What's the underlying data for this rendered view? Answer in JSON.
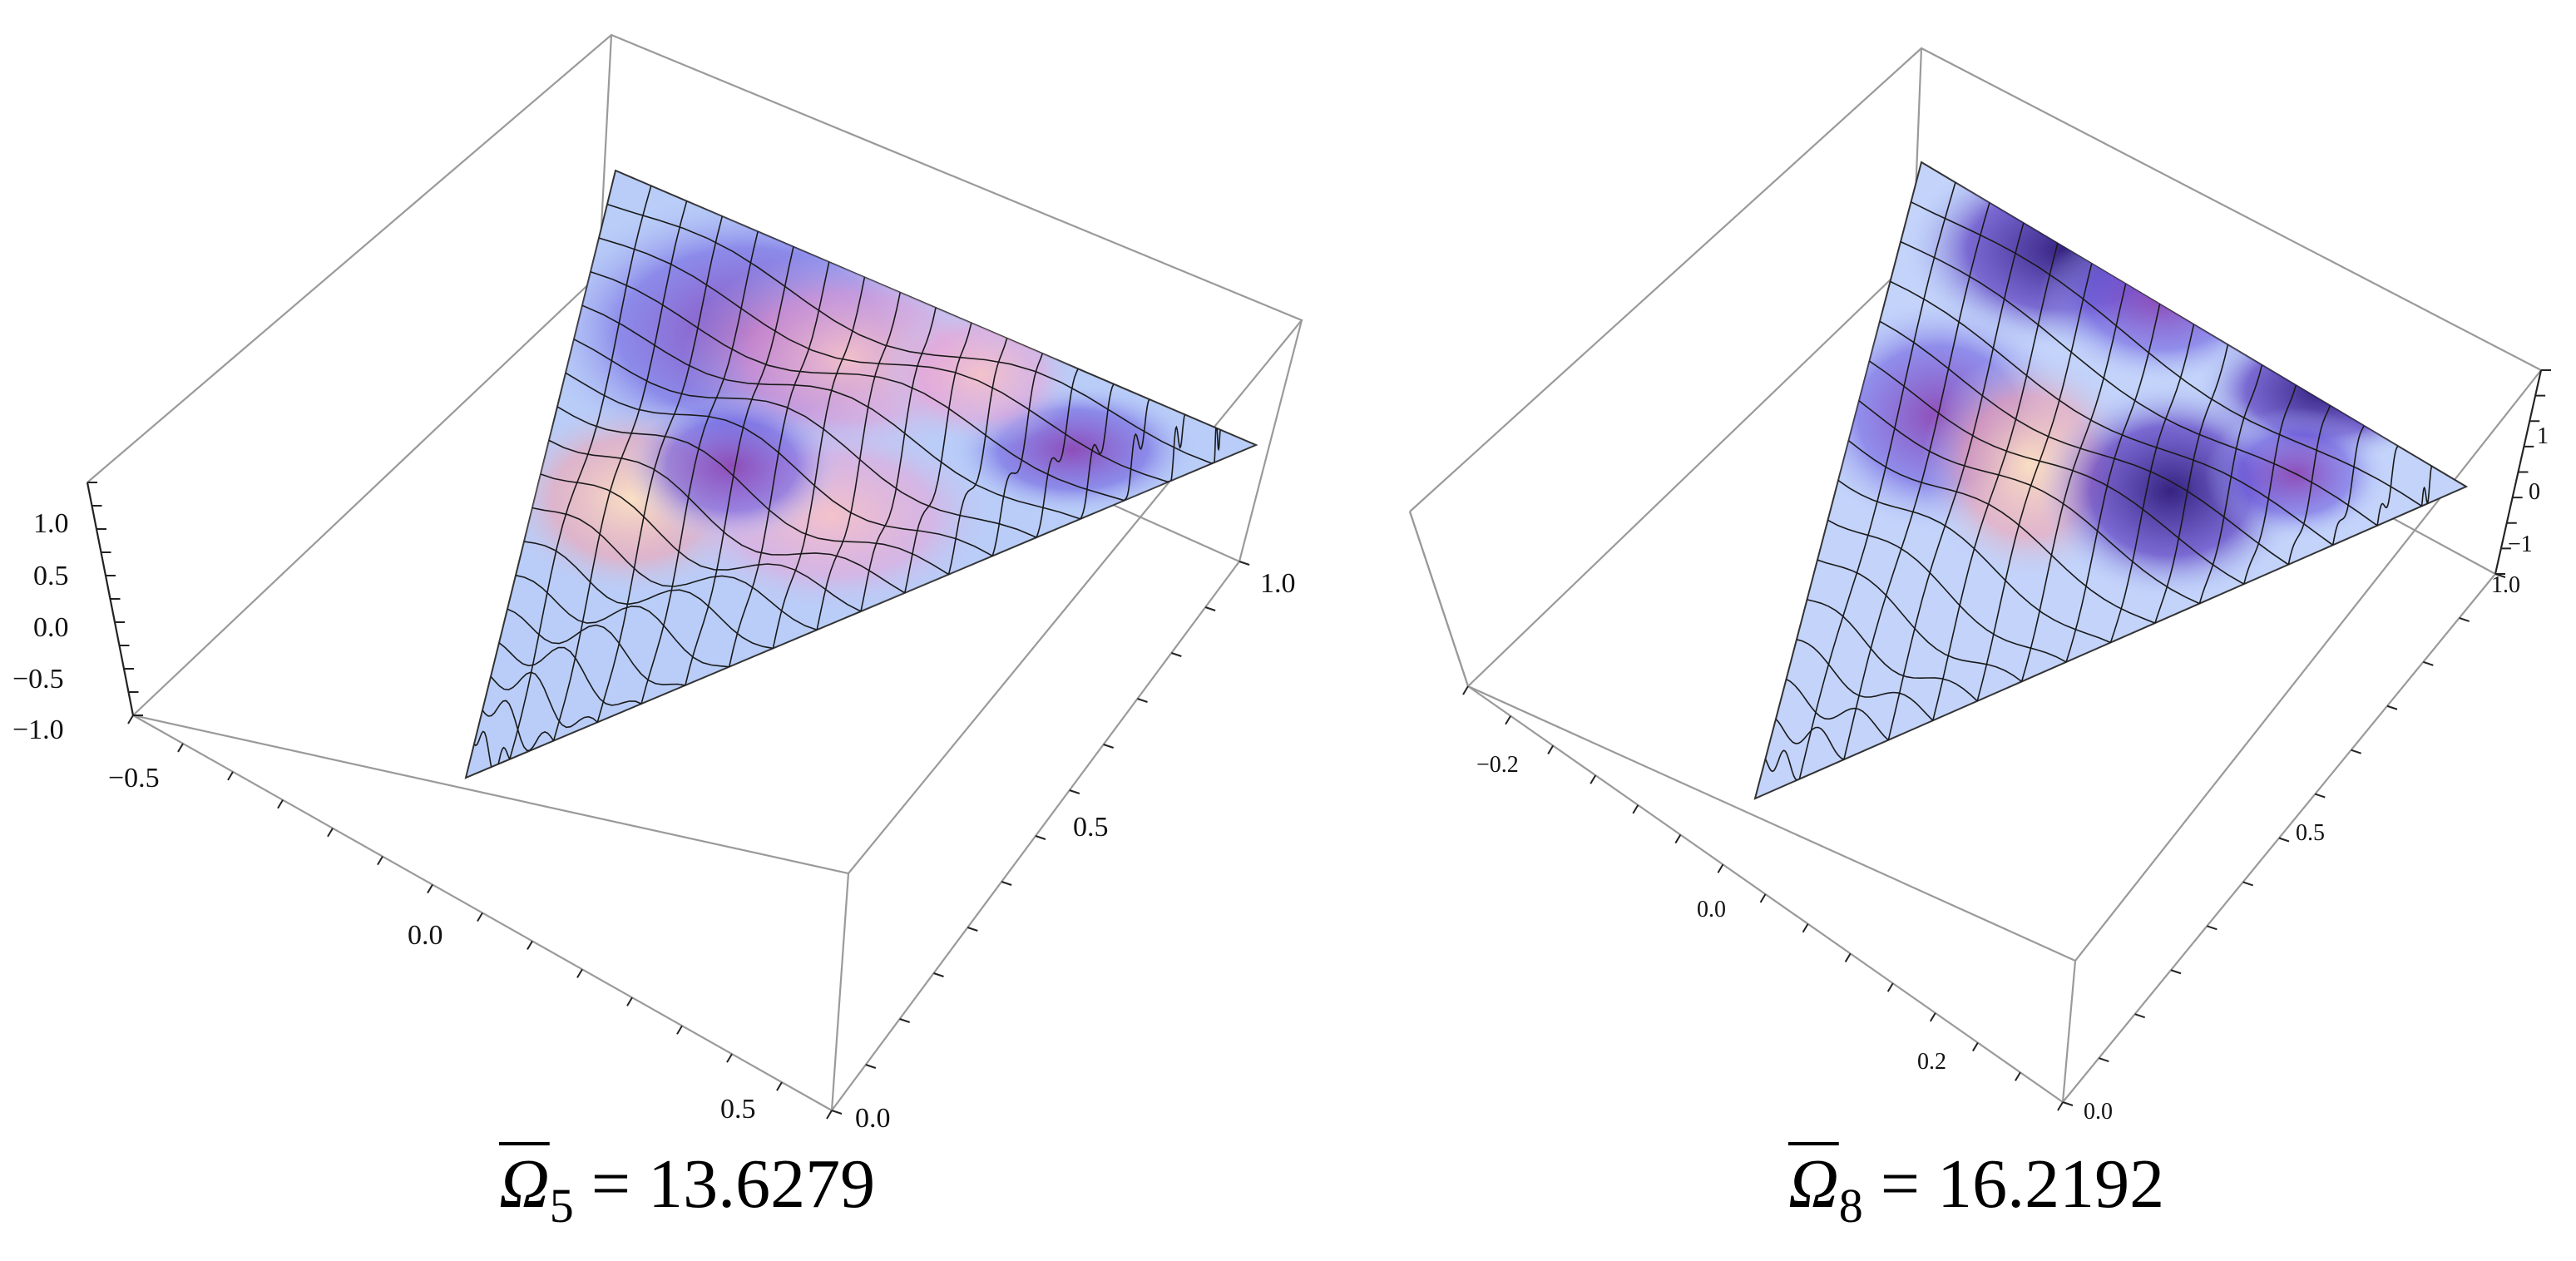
{
  "figure": {
    "panels": [
      {
        "id": "mode5",
        "caption": {
          "symbol": "Ω",
          "subscript": "5",
          "equals": "=",
          "value": "13.6279"
        },
        "z_ticks": [
          "1.0",
          "0.5",
          "0.0",
          "−0.5",
          "−1.0"
        ],
        "x_ticks": [
          "−0.5",
          "0.0",
          "0.5"
        ],
        "y_ticks": [
          "0.0",
          "0.5",
          "1.0"
        ]
      },
      {
        "id": "mode8",
        "caption": {
          "symbol": "Ω",
          "subscript": "8",
          "equals": "=",
          "value": "16.2192"
        },
        "z_ticks": [
          "1",
          "0",
          "−1"
        ],
        "x_ticks": [
          "−0.2",
          "0.0",
          "0.2"
        ],
        "y_ticks": [
          "0.0",
          "0.5",
          "1.0"
        ]
      }
    ],
    "colors": {
      "box_line": "#9a9a9a",
      "surface_light": "#b9cdf8",
      "surface_blue": "#4a55e0",
      "surface_purple": "#7a3a9c",
      "surface_pink": "#f3b7c8",
      "mesh": "#1a1a1a"
    }
  }
}
